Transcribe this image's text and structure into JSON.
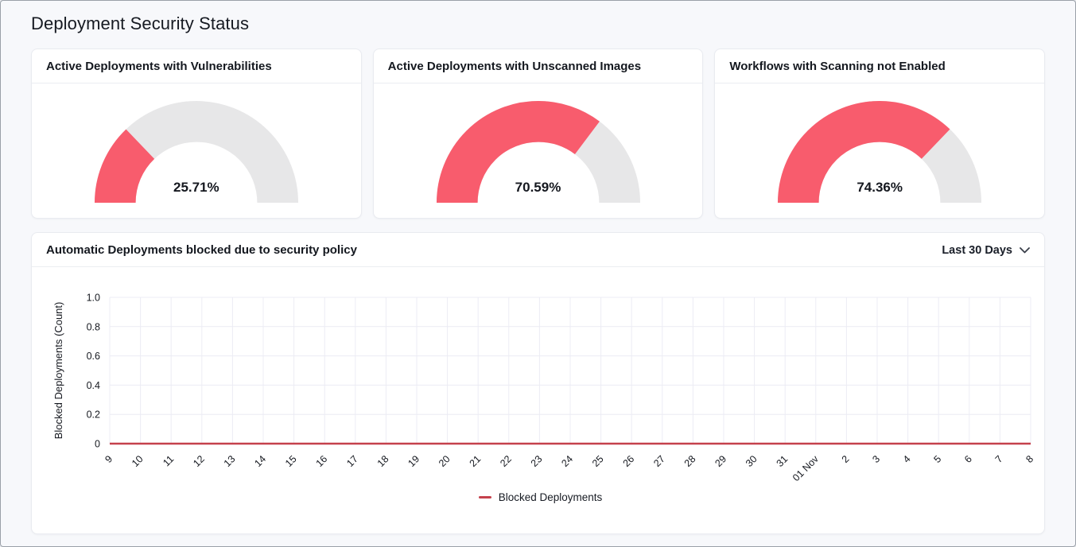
{
  "page": {
    "title": "Deployment Security Status"
  },
  "colors": {
    "gauge_fill": "#f85c6d",
    "gauge_track": "#e7e7e8",
    "line": "#c5414c",
    "grid": "#ececf4",
    "tick_text": "#15181f"
  },
  "gauges": [
    {
      "title": "Active Deployments with Vulnerabilities",
      "value_label": "25.71%",
      "percent": 25.71
    },
    {
      "title": "Active Deployments with Unscanned Images",
      "value_label": "70.59%",
      "percent": 70.59
    },
    {
      "title": "Workflows with Scanning not Enabled",
      "value_label": "74.36%",
      "percent": 74.36
    }
  ],
  "blocked_chart": {
    "title": "Automatic Deployments blocked due to security policy",
    "range_selector": "Last 30 Days",
    "legend": [
      {
        "label": "Blocked Deployments",
        "color": "#c5414c"
      }
    ]
  },
  "chart_data": [
    {
      "type": "gauge",
      "title": "Active Deployments with Vulnerabilities",
      "value_percent": 25.71,
      "label": "25.71%",
      "range": [
        0,
        100
      ]
    },
    {
      "type": "gauge",
      "title": "Active Deployments with Unscanned Images",
      "value_percent": 70.59,
      "label": "70.59%",
      "range": [
        0,
        100
      ]
    },
    {
      "type": "gauge",
      "title": "Workflows with Scanning not Enabled",
      "value_percent": 74.36,
      "label": "74.36%",
      "range": [
        0,
        100
      ]
    },
    {
      "type": "line",
      "title": "Automatic Deployments blocked due to security policy",
      "time_range": "Last 30 Days",
      "x": [
        "9",
        "10",
        "11",
        "12",
        "13",
        "14",
        "15",
        "16",
        "17",
        "18",
        "19",
        "20",
        "21",
        "22",
        "23",
        "24",
        "25",
        "26",
        "27",
        "28",
        "29",
        "30",
        "31",
        "01 Nov",
        "2",
        "3",
        "4",
        "5",
        "6",
        "7",
        "8"
      ],
      "series": [
        {
          "name": "Blocked Deployments",
          "values": [
            0,
            0,
            0,
            0,
            0,
            0,
            0,
            0,
            0,
            0,
            0,
            0,
            0,
            0,
            0,
            0,
            0,
            0,
            0,
            0,
            0,
            0,
            0,
            0,
            0,
            0,
            0,
            0,
            0,
            0,
            0
          ]
        }
      ],
      "ylabel": "Blocked Deployments (Count)",
      "xlabel": "",
      "ylim": [
        0,
        1
      ],
      "ytick_labels": [
        "0",
        "0.2",
        "0.4",
        "0.6",
        "0.8",
        "1.0"
      ],
      "grid": true,
      "legend_position": "bottom"
    }
  ]
}
